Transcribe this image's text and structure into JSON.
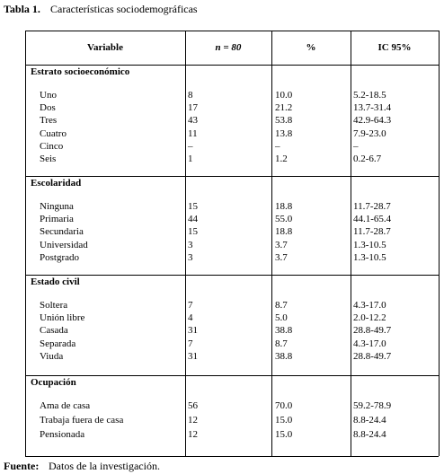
{
  "title": {
    "label": "Tabla 1.",
    "text": "Características  sociodemográficas"
  },
  "table": {
    "header": [
      "Variable",
      "n = 80",
      "%",
      "IC 95%"
    ],
    "sections": [
      {
        "name": "Estrato socioeconómico",
        "rows": [
          [
            "Uno",
            "8",
            "10.0",
            "5.2-18.5"
          ],
          [
            "Dos",
            "17",
            "21.2",
            "13.7-31.4"
          ],
          [
            "Tres",
            "43",
            "53.8",
            "42.9-64.3"
          ],
          [
            "Cuatro",
            "11",
            "13.8",
            "7.9-23.0"
          ],
          [
            "Cinco",
            "–",
            "–",
            "–"
          ],
          [
            "Seis",
            "1",
            "1.2",
            "0.2-6.7"
          ]
        ]
      },
      {
        "name": "Escolaridad",
        "rows": [
          [
            "Ninguna",
            "15",
            "18.8",
            "11.7-28.7"
          ],
          [
            "Primaria",
            "44",
            "55.0",
            "44.1-65.4"
          ],
          [
            "Secundaria",
            "15",
            "18.8",
            "11.7-28.7"
          ],
          [
            "Universidad",
            "3",
            "3.7",
            "1.3-10.5"
          ],
          [
            "Postgrado",
            "3",
            "3.7",
            "1.3-10.5"
          ]
        ]
      },
      {
        "name": "Estado civil",
        "rows": [
          [
            "Soltera",
            "7",
            "8.7",
            "4.3-17.0"
          ],
          [
            "Unión libre",
            "4",
            "5.0",
            "2.0-12.2"
          ],
          [
            "Casada",
            "31",
            "38.8",
            "28.8-49.7"
          ],
          [
            "Separada",
            "7",
            "8.7",
            "4.3-17.0"
          ],
          [
            "Viuda",
            "31",
            "38.8",
            "28.8-49.7"
          ]
        ]
      },
      {
        "name": "Ocupación",
        "rows": [
          [
            "Ama de casa",
            "56",
            "70.0",
            "59.2-78.9"
          ],
          [
            "Trabaja fuera de casa",
            "12",
            "15.0",
            "8.8-24.4"
          ],
          [
            "Pensionada",
            "12",
            "15.0",
            "8.8-24.4"
          ]
        ]
      }
    ]
  },
  "footer": {
    "label": "Fuente:",
    "text": "Datos de la investigación."
  }
}
